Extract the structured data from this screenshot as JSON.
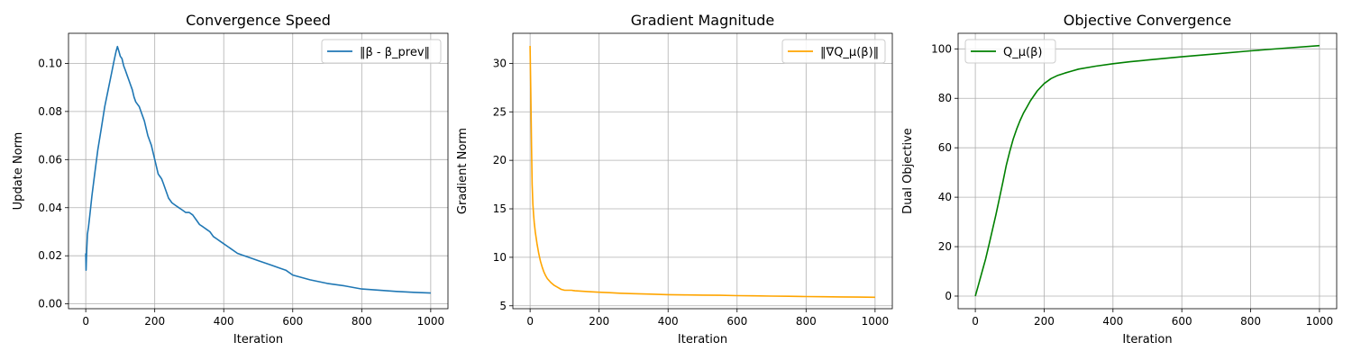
{
  "chart_data": [
    {
      "type": "line",
      "title": "Convergence Speed",
      "xlabel": "Iteration",
      "ylabel": "Update Norm",
      "xlim": [
        -50,
        1050
      ],
      "ylim": [
        -0.002,
        0.1125
      ],
      "xticks": [
        0,
        200,
        400,
        600,
        800,
        1000
      ],
      "yticks": [
        0.0,
        0.02,
        0.04,
        0.06,
        0.08,
        0.1
      ],
      "ytick_labels": [
        "0.00",
        "0.02",
        "0.04",
        "0.06",
        "0.08",
        "0.10"
      ],
      "grid": true,
      "legend": "upper-right",
      "series": [
        {
          "name": "‖β - β_prev‖",
          "color": "#1f77b4",
          "x": [
            0,
            1,
            2,
            3,
            5,
            8,
            12,
            18,
            25,
            35,
            45,
            55,
            65,
            75,
            82,
            88,
            92,
            96,
            100,
            105,
            110,
            115,
            120,
            125,
            130,
            135,
            140,
            145,
            150,
            155,
            160,
            165,
            170,
            175,
            180,
            185,
            190,
            195,
            200,
            205,
            210,
            215,
            220,
            225,
            230,
            240,
            250,
            260,
            270,
            280,
            290,
            300,
            310,
            320,
            330,
            340,
            350,
            360,
            370,
            380,
            390,
            400,
            420,
            440,
            460,
            480,
            500,
            520,
            540,
            560,
            580,
            600,
            650,
            700,
            750,
            800,
            850,
            900,
            950,
            1000
          ],
          "y": [
            0.021,
            0.014,
            0.019,
            0.023,
            0.029,
            0.032,
            0.037,
            0.045,
            0.053,
            0.064,
            0.073,
            0.082,
            0.089,
            0.096,
            0.101,
            0.105,
            0.107,
            0.105,
            0.103,
            0.102,
            0.099,
            0.097,
            0.095,
            0.093,
            0.091,
            0.089,
            0.086,
            0.084,
            0.083,
            0.082,
            0.08,
            0.078,
            0.076,
            0.073,
            0.07,
            0.068,
            0.066,
            0.063,
            0.06,
            0.057,
            0.054,
            0.053,
            0.052,
            0.05,
            0.048,
            0.044,
            0.042,
            0.041,
            0.04,
            0.039,
            0.038,
            0.038,
            0.037,
            0.035,
            0.033,
            0.032,
            0.031,
            0.03,
            0.028,
            0.027,
            0.026,
            0.025,
            0.023,
            0.021,
            0.02,
            0.019,
            0.018,
            0.017,
            0.016,
            0.015,
            0.014,
            0.012,
            0.01,
            0.0085,
            0.0075,
            0.0062,
            0.0057,
            0.0052,
            0.0048,
            0.0045
          ]
        }
      ]
    },
    {
      "type": "line",
      "title": "Gradient Magnitude",
      "xlabel": "Iteration",
      "ylabel": "Gradient Norm",
      "xlim": [
        -50,
        1050
      ],
      "ylim": [
        4.7,
        33.1
      ],
      "xticks": [
        0,
        200,
        400,
        600,
        800,
        1000
      ],
      "yticks": [
        5,
        10,
        15,
        20,
        25,
        30
      ],
      "ytick_labels": [
        "5",
        "10",
        "15",
        "20",
        "25",
        "30"
      ],
      "grid": true,
      "legend": "upper-right",
      "series": [
        {
          "name": "‖∇Q_μ(β)‖",
          "color": "#ffa500",
          "x": [
            0,
            2,
            4,
            6,
            8,
            10,
            12,
            15,
            20,
            25,
            30,
            35,
            40,
            45,
            50,
            60,
            70,
            80,
            90,
            100,
            110,
            120,
            130,
            150,
            170,
            200,
            230,
            260,
            300,
            350,
            400,
            450,
            500,
            550,
            600,
            650,
            700,
            750,
            800,
            850,
            900,
            950,
            1000
          ],
          "y": [
            31.8,
            27.0,
            21.5,
            17.5,
            15.5,
            14.4,
            13.6,
            12.6,
            11.4,
            10.4,
            9.6,
            9.0,
            8.5,
            8.1,
            7.8,
            7.4,
            7.1,
            6.9,
            6.7,
            6.6,
            6.6,
            6.6,
            6.55,
            6.5,
            6.45,
            6.4,
            6.35,
            6.3,
            6.25,
            6.2,
            6.15,
            6.12,
            6.1,
            6.08,
            6.05,
            6.03,
            6.0,
            5.98,
            5.95,
            5.93,
            5.92,
            5.9,
            5.88
          ]
        }
      ]
    },
    {
      "type": "line",
      "title": "Objective Convergence",
      "xlabel": "Iteration",
      "ylabel": "Dual Objective",
      "xlim": [
        -50,
        1050
      ],
      "ylim": [
        -5.1,
        106.3
      ],
      "xticks": [
        0,
        200,
        400,
        600,
        800,
        1000
      ],
      "yticks": [
        0,
        20,
        40,
        60,
        80,
        100
      ],
      "ytick_labels": [
        "0",
        "20",
        "40",
        "60",
        "80",
        "100"
      ],
      "grid": true,
      "legend": "upper-left",
      "series": [
        {
          "name": "Q_μ(β)",
          "color": "#008000",
          "x": [
            0,
            10,
            20,
            30,
            40,
            50,
            60,
            70,
            80,
            90,
            100,
            110,
            120,
            130,
            140,
            150,
            160,
            170,
            180,
            190,
            200,
            220,
            240,
            260,
            280,
            300,
            350,
            400,
            450,
            500,
            600,
            700,
            800,
            900,
            1000
          ],
          "y": [
            0,
            5,
            10,
            15,
            21,
            27,
            33,
            39.5,
            46,
            53,
            58.5,
            63.5,
            67.5,
            71,
            74,
            76.5,
            79,
            81,
            83,
            84.5,
            86,
            88,
            89.3,
            90.2,
            91,
            91.8,
            93,
            94,
            94.8,
            95.5,
            96.8,
            98,
            99.2,
            100.3,
            101.3
          ]
        }
      ]
    }
  ]
}
